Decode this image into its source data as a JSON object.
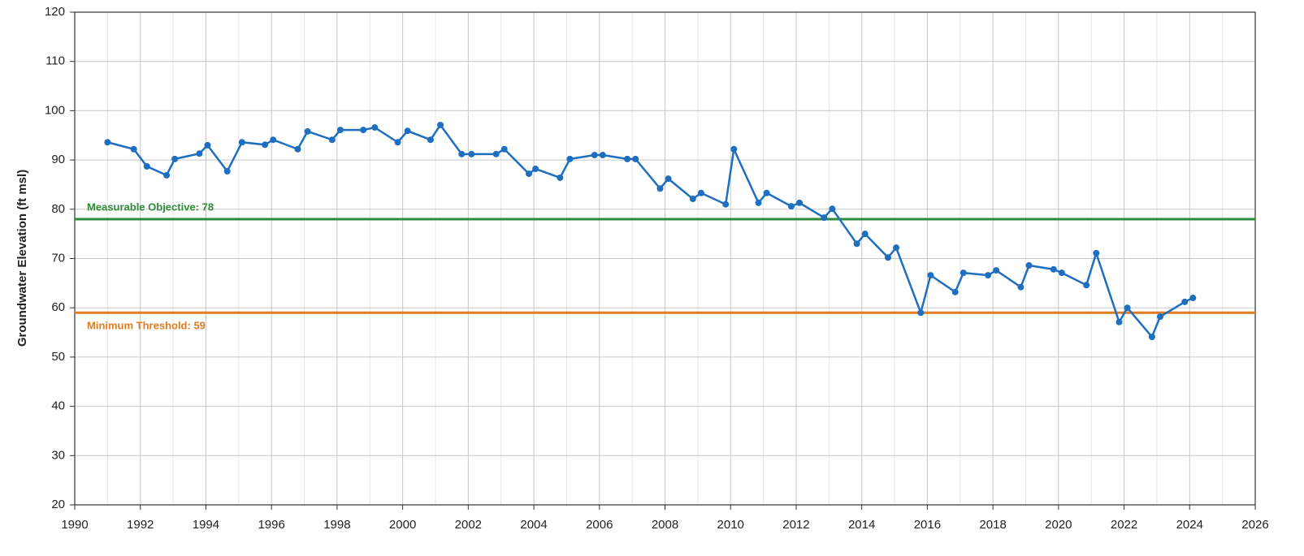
{
  "chart_data": {
    "type": "line",
    "y_label": "Groundwater Elevation (ft msl)",
    "xlim": [
      1990,
      2026
    ],
    "xticks": [
      1990,
      1992,
      1994,
      1996,
      1998,
      2000,
      2002,
      2004,
      2006,
      2008,
      2010,
      2012,
      2014,
      2016,
      2018,
      2020,
      2022,
      2024,
      2026
    ],
    "ylim": [
      20,
      120
    ],
    "yticks": [
      20,
      30,
      40,
      50,
      60,
      70,
      80,
      90,
      100,
      110,
      120
    ],
    "grid": true,
    "series": [
      {
        "name": "Groundwater Elevation",
        "color": "#1f6fc0",
        "x": [
          1991.0,
          1991.8,
          1992.2,
          1992.8,
          1993.05,
          1993.8,
          1994.05,
          1994.65,
          1995.1,
          1995.8,
          1996.05,
          1996.8,
          1997.1,
          1997.85,
          1998.1,
          1998.8,
          1999.15,
          1999.85,
          2000.15,
          2000.85,
          2001.15,
          2001.8,
          2002.1,
          2002.85,
          2003.1,
          2003.85,
          2004.05,
          2004.8,
          2005.1,
          2005.85,
          2006.1,
          2006.85,
          2007.1,
          2007.85,
          2008.1,
          2008.85,
          2009.1,
          2009.85,
          2010.1,
          2010.85,
          2011.1,
          2011.85,
          2012.1,
          2012.85,
          2013.1,
          2013.85,
          2014.1,
          2014.8,
          2015.05,
          2015.8,
          2016.1,
          2016.85,
          2017.1,
          2017.85,
          2018.1,
          2018.85,
          2019.1,
          2019.85,
          2020.1,
          2020.85,
          2021.15,
          2021.85,
          2022.1,
          2022.85,
          2023.1,
          2023.85,
          2024.1
        ],
        "values": [
          93.6,
          92.2,
          88.7,
          86.9,
          90.2,
          91.3,
          93.0,
          87.7,
          93.6,
          93.1,
          94.1,
          92.2,
          95.8,
          94.1,
          96.1,
          96.1,
          96.6,
          93.6,
          95.9,
          94.1,
          97.1,
          91.2,
          91.2,
          91.2,
          92.2,
          87.2,
          88.2,
          86.4,
          90.2,
          91.0,
          91.0,
          90.2,
          90.2,
          84.2,
          86.2,
          82.1,
          83.3,
          81.0,
          92.2,
          81.3,
          83.3,
          80.6,
          81.3,
          78.3,
          80.1,
          73.0,
          75.0,
          70.2,
          72.2,
          59.0,
          66.6,
          63.2,
          67.1,
          66.6,
          67.6,
          64.2,
          68.6,
          67.8,
          67.1,
          64.6,
          71.1,
          57.1,
          60.0,
          54.1,
          58.2,
          61.2,
          62.0
        ]
      }
    ],
    "reference_lines": [
      {
        "label": "Measurable Objective: 78",
        "value": 78,
        "color": "#2e8b3a"
      },
      {
        "label": "Minimum Threshold: 59",
        "value": 59,
        "color": "#e07b20"
      }
    ]
  }
}
